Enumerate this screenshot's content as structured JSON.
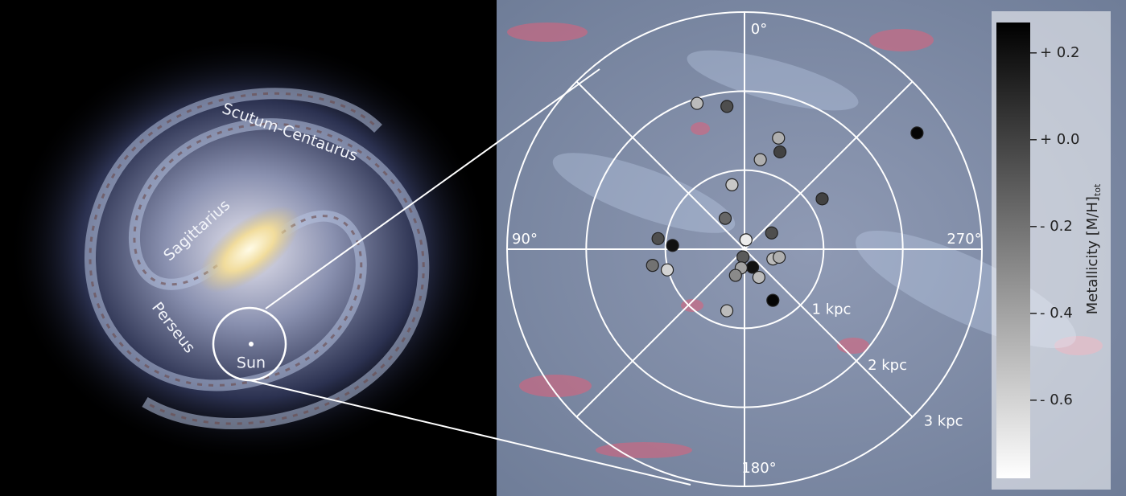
{
  "chart_data": {
    "type": "polar-scatter",
    "galaxy_labels": {
      "arm1": "Scutum-Centaurus",
      "arm2": "Sagittarius",
      "arm3": "Perseus",
      "sun": "Sun"
    },
    "theta_ticks": [
      {
        "value": 0,
        "label": "0°"
      },
      {
        "value": 90,
        "label": "90°"
      },
      {
        "value": 180,
        "label": "180°"
      },
      {
        "value": 270,
        "label": "270°"
      }
    ],
    "rlim": [
      0,
      3
    ],
    "rticks": [
      {
        "value": 1,
        "label": "1 kpc"
      },
      {
        "value": 2,
        "label": "2 kpc"
      },
      {
        "value": 3,
        "label": "3 kpc"
      }
    ],
    "points": {
      "l": [
        18,
        7,
        343,
        340,
        350,
        304,
        11,
        303,
        32,
        301,
        351,
        83,
        87,
        169,
        100,
        105,
        204,
        170,
        161,
        251,
        257,
        207,
        209,
        164
      ],
      "r": [
        1.94,
        1.82,
        1.47,
        1.31,
        1.15,
        2.63,
        0.83,
        1.17,
        0.46,
        0.4,
        0.12,
        1.1,
        0.91,
        0.1,
        1.18,
        1.01,
        0.25,
        0.24,
        0.35,
        0.38,
        0.45,
        0.4,
        0.74,
        0.81
      ],
      "metallicity": [
        -0.5,
        -0.05,
        -0.45,
        0.0,
        -0.45,
        0.25,
        -0.55,
        0.0,
        -0.15,
        -0.05,
        -0.7,
        -0.05,
        0.2,
        -0.1,
        -0.2,
        -0.6,
        0.2,
        -0.4,
        -0.3,
        -0.5,
        -0.45,
        -0.5,
        0.25,
        -0.5
      ]
    },
    "colorbar": {
      "label": "Metallicity [M/H]",
      "label_sub": "tot",
      "clim": [
        -0.78,
        0.27
      ],
      "ticks": [
        {
          "value": 0.2,
          "label": "+ 0.2"
        },
        {
          "value": 0.0,
          "label": "+ 0.0"
        },
        {
          "value": -0.2,
          "label": "- 0.2"
        },
        {
          "value": -0.4,
          "label": "- 0.4"
        },
        {
          "value": -0.6,
          "label": "- 0.6"
        }
      ]
    }
  }
}
